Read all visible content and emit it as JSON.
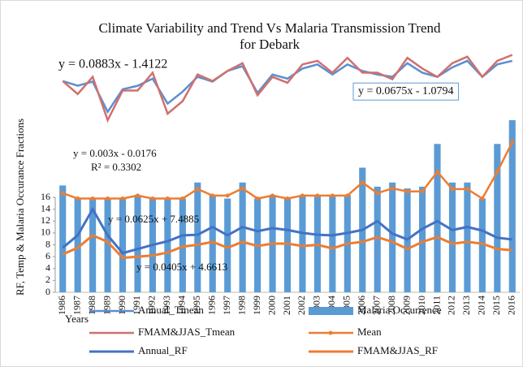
{
  "chart_data": {
    "type": "combo",
    "title": [
      "Climate Variability and Trend Vs Malaria Transmission Trend",
      "for Debark"
    ],
    "x_label": "Years",
    "y_label": "RF, Temp & Malaria Occurance Fractions",
    "categories": [
      "1986",
      "1987",
      "1988",
      "1989",
      "1990",
      "1991",
      "1992",
      "1993",
      "1994",
      "1995",
      "1996",
      "1997",
      "1998",
      "1999",
      "2000",
      "2001",
      "2002",
      "2003",
      "2004",
      "2005",
      "2006",
      "2007",
      "2008",
      "2009",
      "2010",
      "2011",
      "2012",
      "2013",
      "2014",
      "2015",
      "2016"
    ],
    "ylim": [
      0,
      42
    ],
    "yticks": [
      0,
      2,
      4,
      6,
      8,
      10,
      12,
      14,
      16
    ],
    "annotations": [
      "y = 0.0883x - 1.4122",
      "y = 0.0675x - 1.0794",
      "y = 0.003x - 0.0176",
      "R² = 0.3302",
      "y = 0.0625x + 7.4885",
      "y = 0.0405x + 4.6613"
    ],
    "series": [
      {
        "name": "Annual_Tmean",
        "kind": "line",
        "color": "#5b8fd1",
        "values": [
          35.6,
          34.8,
          35.5,
          30.4,
          34.2,
          34.8,
          36,
          31.8,
          33.8,
          36.3,
          35.5,
          37.3,
          38.1,
          33.6,
          36.7,
          36,
          37.7,
          38.4,
          36.7,
          38.4,
          37.3,
          36.7,
          36.3,
          38.6,
          37,
          36.3,
          37.9,
          39,
          36.3,
          38.4,
          39
        ]
      },
      {
        "name": "Malaria Occurrence",
        "kind": "bar",
        "color": "#5b9bd5",
        "values": [
          18,
          15.8,
          15.8,
          15.8,
          15.8,
          16.4,
          15.8,
          15.8,
          15.8,
          18.5,
          16.4,
          15.8,
          18.5,
          15.8,
          16.4,
          15.8,
          16.4,
          16.4,
          16.4,
          16.4,
          21,
          17.8,
          18.5,
          17.5,
          17.8,
          25,
          18.5,
          18.5,
          15.8,
          25,
          29
        ]
      },
      {
        "name": "FMAM&JJAS_Tmean",
        "kind": "line",
        "color": "#d0706e",
        "values": [
          35.6,
          33.4,
          36.3,
          29,
          34,
          34,
          37,
          30.1,
          32.2,
          36.7,
          35.6,
          37.3,
          38.6,
          33.2,
          36.3,
          35.3,
          38.4,
          39,
          37,
          39.5,
          37,
          37,
          35.9,
          39.5,
          37.7,
          36.3,
          38.6,
          39.7,
          36.3,
          39,
          40
        ]
      },
      {
        "name": "Mean",
        "kind": "line",
        "markers": true,
        "color": "#ed7d31",
        "values": [
          16.7,
          15.8,
          15.8,
          15.8,
          15.8,
          16.3,
          15.8,
          15.8,
          15.8,
          17.4,
          16.3,
          16.3,
          17.5,
          15.8,
          16.3,
          15.8,
          16.3,
          16.3,
          16.3,
          16.3,
          18.5,
          16.7,
          17.5,
          17,
          17,
          20.3,
          17.4,
          17.4,
          15.8,
          20.3,
          25.3
        ]
      },
      {
        "name": "Annual_RF",
        "kind": "line",
        "color": "#4472c4",
        "values": [
          7.5,
          9.6,
          14,
          9.6,
          6.6,
          7.3,
          8,
          8.6,
          9.6,
          9.7,
          11,
          9.6,
          11,
          10.3,
          10.8,
          10.5,
          10,
          9.7,
          9.6,
          10,
          10.5,
          12,
          9.9,
          8.9,
          10.7,
          12,
          10.5,
          11,
          10.4,
          9.2,
          8.9
        ]
      },
      {
        "name": "FMAM&JJAS_RF",
        "kind": "line",
        "color": "#ed7d31",
        "values": [
          6.4,
          7.5,
          9.6,
          8.5,
          5.8,
          6,
          6.2,
          6.7,
          7.7,
          8,
          8.5,
          7.5,
          8.5,
          7.8,
          8.2,
          8.2,
          7.8,
          8,
          7.4,
          8.2,
          8.5,
          9.3,
          8.5,
          7.3,
          8.5,
          9.3,
          8.2,
          8.5,
          8.2,
          7.3,
          7.1
        ]
      }
    ]
  }
}
